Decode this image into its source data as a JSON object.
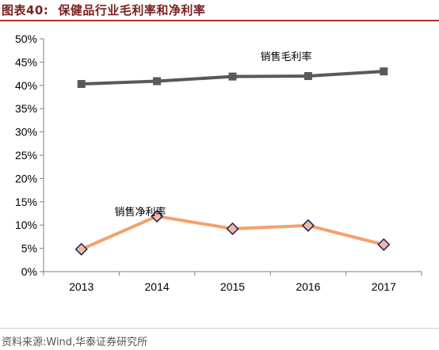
{
  "header": {
    "figure_label": "图表40:",
    "title": "保健品行业毛利率和净利率"
  },
  "source": "资料来源:Wind,华泰证券研究所",
  "colors": {
    "gross": "#595959",
    "net": "#f4a16c",
    "marker_fill": "#f0b9a0",
    "marker_edge": "#1f1f5c",
    "header_rule": "#b22d2d"
  },
  "chart_data": {
    "type": "line",
    "title": "保健品行业毛利率和净利率",
    "categories": [
      "2013",
      "2014",
      "2015",
      "2016",
      "2017"
    ],
    "ylim": [
      0,
      50
    ],
    "yticks": [
      "0%",
      "5%",
      "10%",
      "15%",
      "20%",
      "25%",
      "30%",
      "35%",
      "40%",
      "45%",
      "50%"
    ],
    "grid": false,
    "series": [
      {
        "name": "销售毛利率",
        "values": [
          40.3,
          40.9,
          41.9,
          42.0,
          43.0
        ]
      },
      {
        "name": "销售净利率",
        "values": [
          4.8,
          11.9,
          9.2,
          9.9,
          5.8
        ]
      }
    ]
  }
}
